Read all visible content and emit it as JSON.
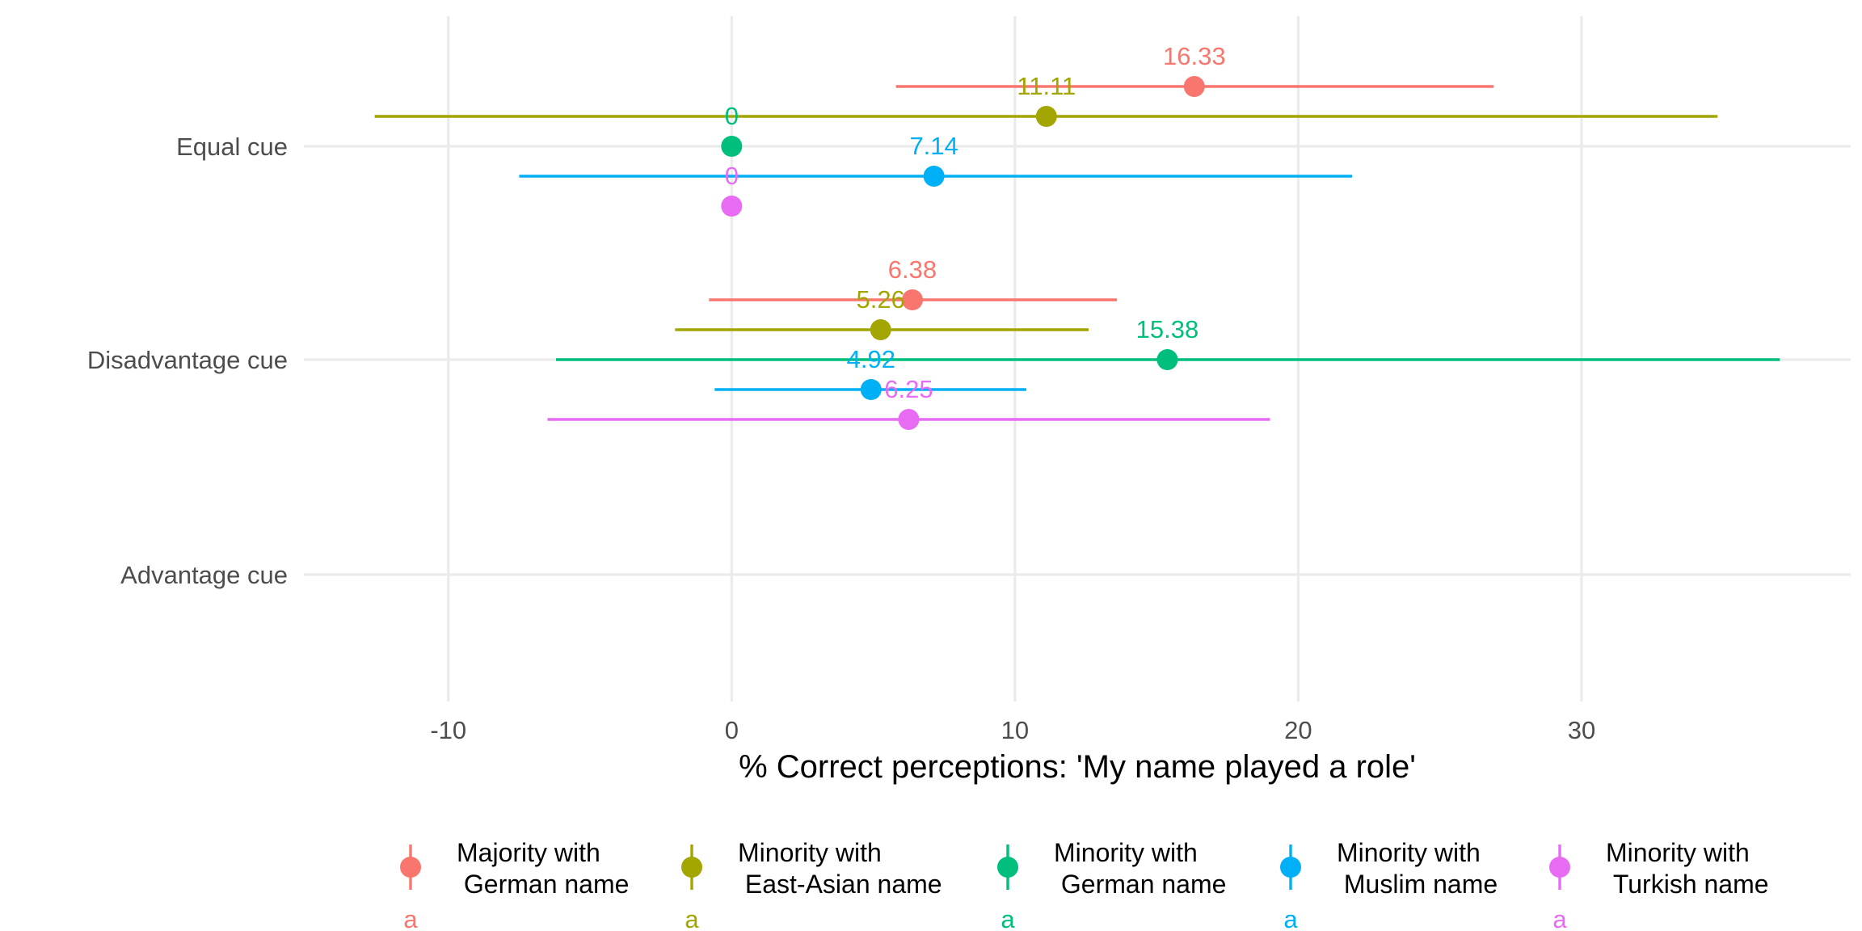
{
  "chart_data": {
    "type": "dot-interval",
    "xlabel": "% Correct perceptions: 'My name played a role'",
    "xlim": [
      -15.1,
      39.5
    ],
    "x_ticks": [
      -10,
      0,
      10,
      20,
      30
    ],
    "x_tick_labels": [
      "-10",
      "0",
      "10",
      "20",
      "30"
    ],
    "categories": [
      "Equal cue",
      "Disadvantage cue",
      "Advantage cue"
    ],
    "grid": true,
    "legend_position": "bottom",
    "series": [
      {
        "name": "Majority with\n German name",
        "color": "#F8766D",
        "key_letter": "a",
        "points": [
          {
            "category": "Equal cue",
            "estimate": 16.33,
            "lower": 5.8,
            "upper": 26.9,
            "label": "16.33"
          },
          {
            "category": "Disadvantage cue",
            "estimate": 6.38,
            "lower": -0.8,
            "upper": 13.6,
            "label": "6.38"
          }
        ]
      },
      {
        "name": "Minority with\n East-Asian name",
        "color": "#A3A500",
        "key_letter": "a",
        "points": [
          {
            "category": "Equal cue",
            "estimate": 11.11,
            "lower": -12.6,
            "upper": 34.8,
            "label": "11.11"
          },
          {
            "category": "Disadvantage cue",
            "estimate": 5.26,
            "lower": -2.0,
            "upper": 12.6,
            "label": "5.26"
          }
        ]
      },
      {
        "name": "Minority with\n German name",
        "color": "#00BF7D",
        "key_letter": "a",
        "points": [
          {
            "category": "Equal cue",
            "estimate": 0,
            "lower": 0,
            "upper": 0,
            "label": "0"
          },
          {
            "category": "Disadvantage cue",
            "estimate": 15.38,
            "lower": -6.2,
            "upper": 37.0,
            "label": "15.38"
          }
        ]
      },
      {
        "name": "Minority with\n Muslim name",
        "color": "#00B0F6",
        "key_letter": "a",
        "points": [
          {
            "category": "Equal cue",
            "estimate": 7.14,
            "lower": -7.5,
            "upper": 21.9,
            "label": "7.14"
          },
          {
            "category": "Disadvantage cue",
            "estimate": 4.92,
            "lower": -0.6,
            "upper": 10.4,
            "label": "4.92"
          }
        ]
      },
      {
        "name": "Minority with\n Turkish name",
        "color": "#E76BF3",
        "key_letter": "a",
        "points": [
          {
            "category": "Equal cue",
            "estimate": 0,
            "lower": 0,
            "upper": 0,
            "label": "0"
          },
          {
            "category": "Disadvantage cue",
            "estimate": 6.25,
            "lower": -6.5,
            "upper": 19.0,
            "label": "6.25"
          }
        ]
      }
    ]
  }
}
